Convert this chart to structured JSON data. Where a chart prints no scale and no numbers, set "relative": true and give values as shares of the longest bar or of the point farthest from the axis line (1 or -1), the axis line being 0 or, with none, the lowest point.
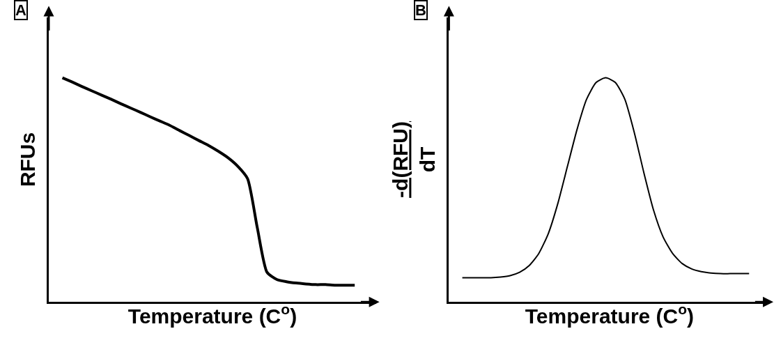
{
  "chart_data": [
    {
      "type": "line",
      "relative": true,
      "title": "A",
      "xlabel": "Temperature (C$^{o}$)",
      "ylabel": "RFUs",
      "tick_labels": false,
      "marker": "none",
      "line_style": "solid",
      "categories": [
        null,
        null,
        null,
        null,
        null,
        null,
        null,
        null,
        null,
        null,
        null,
        null,
        null,
        null,
        null,
        null,
        null,
        null,
        null,
        null,
        null,
        null,
        null,
        null,
        null,
        null,
        null,
        null,
        null,
        null,
        null
      ],
      "series": [
        {
          "color": "#000000",
          "values": [
            1.0,
            0.981,
            0.961,
            0.942,
            0.923,
            0.904,
            0.884,
            0.865,
            0.846,
            0.826,
            0.807,
            0.788,
            0.765,
            0.743,
            0.72,
            0.698,
            0.672,
            0.643,
            0.605,
            0.55,
            0.331,
            0.132,
            0.1,
            0.09,
            0.084,
            0.08,
            0.077,
            0.077,
            0.074,
            0.074,
            0.074
          ]
        }
      ]
    },
    {
      "type": "line",
      "relative": true,
      "title": "B",
      "xlabel": "Temperature (C$^{o}$)",
      "ylabel": "-d(RFU)\ndT",
      "tick_labels": false,
      "marker": "none",
      "line_style": "solid",
      "categories": [
        null,
        null,
        null,
        null,
        null,
        null,
        null,
        null,
        null,
        null,
        null,
        null,
        null,
        null,
        null,
        null,
        null,
        null,
        null,
        null,
        null,
        null,
        null,
        null,
        null,
        null,
        null,
        null,
        null,
        null,
        null
      ],
      "series": [
        {
          "color": "#000000",
          "values": [
            0.108,
            0.108,
            0.108,
            0.108,
            0.111,
            0.117,
            0.132,
            0.162,
            0.216,
            0.305,
            0.44,
            0.605,
            0.769,
            0.904,
            0.979,
            1.0,
            0.979,
            0.904,
            0.754,
            0.575,
            0.41,
            0.29,
            0.216,
            0.171,
            0.147,
            0.135,
            0.129,
            0.126,
            0.126,
            0.126,
            0.126
          ]
        }
      ]
    }
  ]
}
